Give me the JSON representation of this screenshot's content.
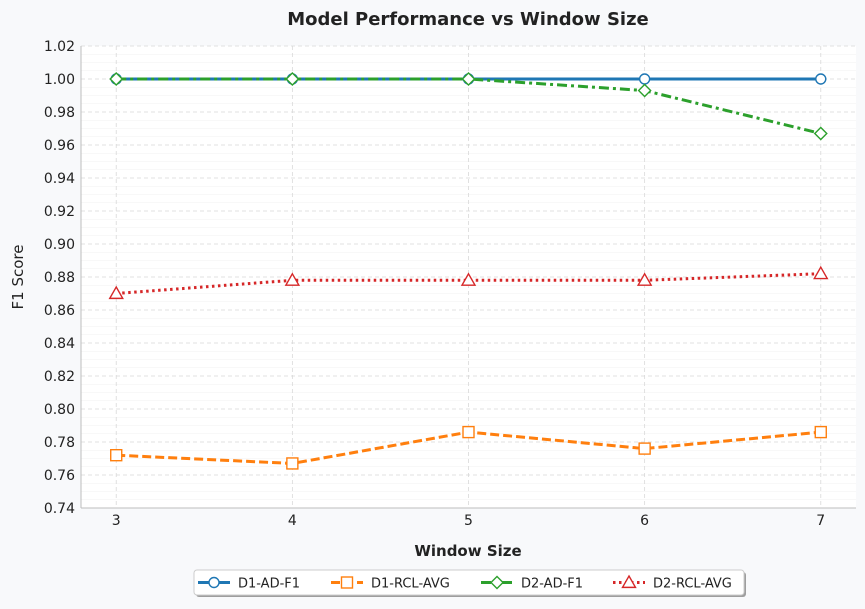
{
  "chart_data": {
    "type": "line",
    "title": "Model Performance vs Window Size",
    "xlabel": "Window Size",
    "ylabel": "F1 Score",
    "x": [
      3,
      4,
      5,
      6,
      7
    ],
    "x_ticks": [
      "3",
      "4",
      "5",
      "6",
      "7"
    ],
    "xlim": [
      2.8,
      7.2
    ],
    "ylim": [
      0.74,
      1.02
    ],
    "y_ticks": [
      "0.74",
      "0.76",
      "0.78",
      "0.80",
      "0.82",
      "0.84",
      "0.86",
      "0.88",
      "0.90",
      "0.92",
      "0.94",
      "0.96",
      "0.98",
      "1.00",
      "1.02"
    ],
    "grid": true,
    "legend_position": "bottom-center",
    "series": [
      {
        "name": "D1-AD-F1",
        "values": [
          1.0,
          1.0,
          1.0,
          1.0,
          1.0
        ],
        "color": "#1f77b4",
        "line_style": "solid",
        "marker": "circle"
      },
      {
        "name": "D1-RCL-AVG",
        "values": [
          0.772,
          0.767,
          0.786,
          0.776,
          0.786
        ],
        "color": "#ff7f0e",
        "line_style": "dashed",
        "marker": "square"
      },
      {
        "name": "D2-AD-F1",
        "values": [
          1.0,
          1.0,
          1.0,
          0.993,
          0.967
        ],
        "color": "#2ca02c",
        "line_style": "dashdot",
        "marker": "diamond"
      },
      {
        "name": "D2-RCL-AVG",
        "values": [
          0.87,
          0.878,
          0.878,
          0.878,
          0.882
        ],
        "color": "#d62728",
        "line_style": "dotted",
        "marker": "triangle"
      }
    ]
  }
}
